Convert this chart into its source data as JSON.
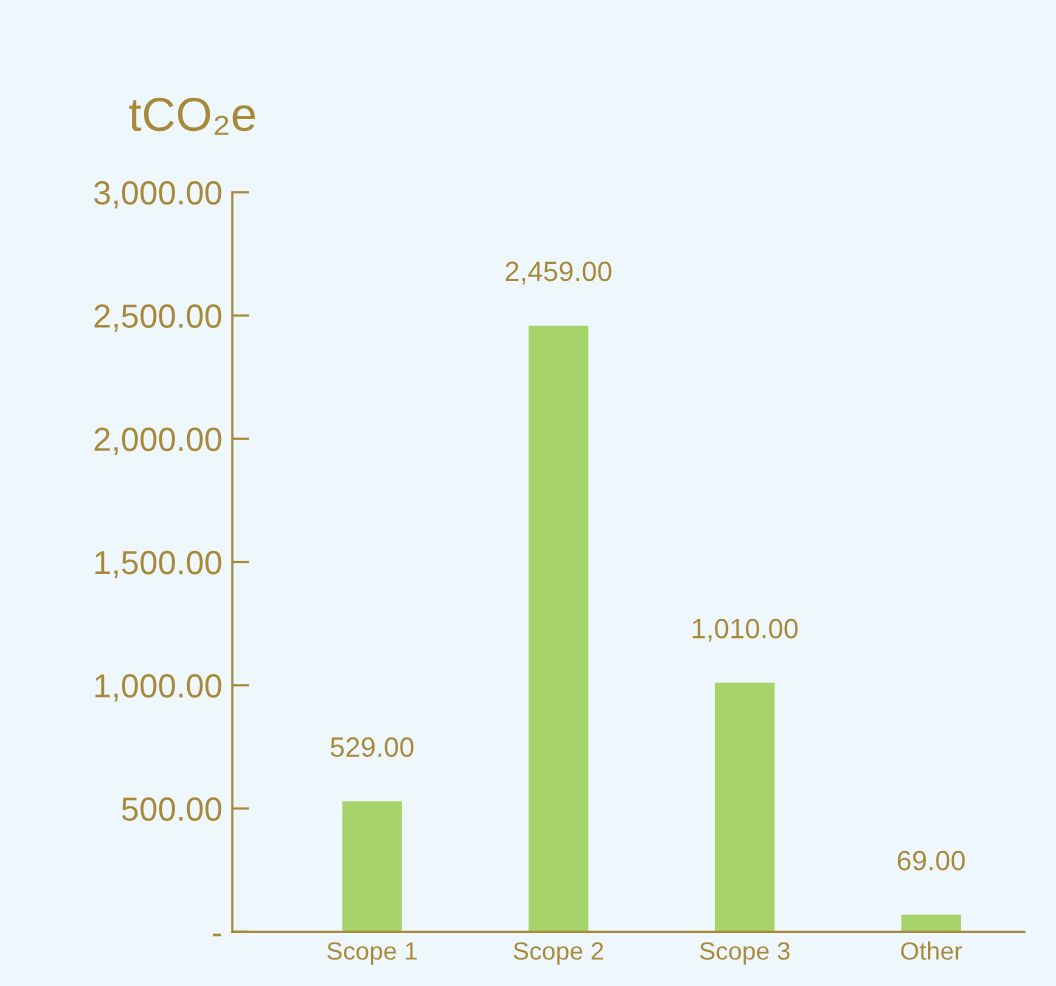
{
  "chart_data": {
    "type": "bar",
    "ylabel": "tCO₂e",
    "categories": [
      "Scope 1",
      "Scope 2",
      "Scope 3",
      "Other"
    ],
    "values": [
      529,
      2459,
      1010,
      69
    ],
    "value_labels": [
      "529.00",
      "2,459.00",
      "1,010.00",
      "69.00"
    ],
    "color": "#a6d46a",
    "ylim": [
      0,
      3000
    ],
    "yticks": [
      {
        "value": 0,
        "label": "-"
      },
      {
        "value": 500,
        "label": "500.00"
      },
      {
        "value": 1000,
        "label": "1,000.00"
      },
      {
        "value": 1500,
        "label": "1,500.00"
      },
      {
        "value": 2000,
        "label": "2,000.00"
      },
      {
        "value": 2500,
        "label": "2,500.00"
      },
      {
        "value": 3000,
        "label": "3,000.00"
      }
    ],
    "grid": false,
    "legend": false
  }
}
